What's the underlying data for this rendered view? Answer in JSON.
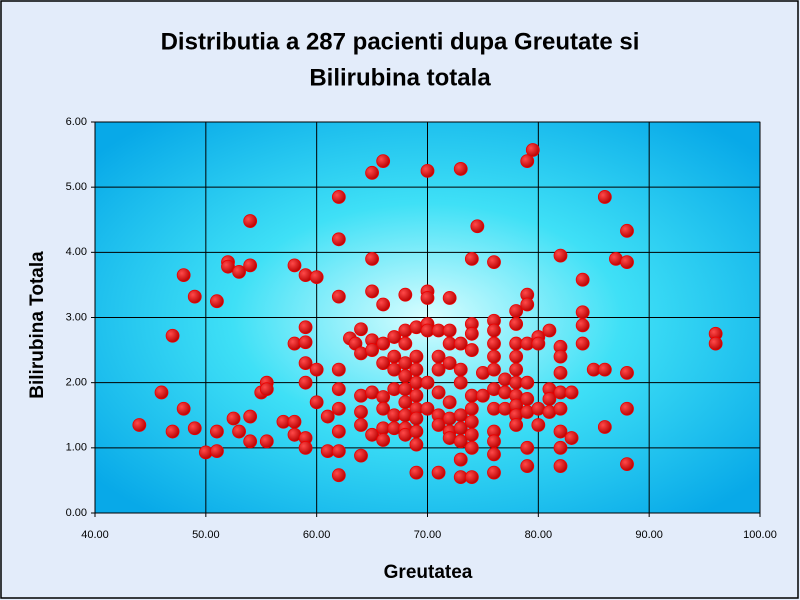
{
  "chart_data": {
    "type": "scatter",
    "title": [
      "Distributia a 287 pacienti dupa Greutate si",
      "Bilirubina totala"
    ],
    "x_label": "Greutatea",
    "y_label": "Bilirubina Totala",
    "color": "#ee0000",
    "grid": true,
    "xlim": [
      40,
      100
    ],
    "ylim": [
      0,
      6
    ],
    "xticks": [
      {
        "value": 40,
        "label": "40.00"
      },
      {
        "value": 50,
        "label": "50.00"
      },
      {
        "value": 60,
        "label": "60.00"
      },
      {
        "value": 70,
        "label": "70.00"
      },
      {
        "value": 80,
        "label": "80.00"
      },
      {
        "value": 90,
        "label": "90.00"
      },
      {
        "value": 100,
        "label": "100.00"
      }
    ],
    "yticks": [
      {
        "value": 0,
        "label": "0.00"
      },
      {
        "value": 1,
        "label": "1.00"
      },
      {
        "value": 2,
        "label": "2.00"
      },
      {
        "value": 3,
        "label": "3.00"
      },
      {
        "value": 4,
        "label": "4.00"
      },
      {
        "value": 5,
        "label": "5.00"
      },
      {
        "value": 6,
        "label": "6.00"
      }
    ],
    "x": [
      44,
      46,
      47,
      47,
      48,
      48,
      49,
      49,
      50,
      51,
      51,
      51,
      52,
      52,
      52.5,
      53,
      53,
      54,
      54,
      54,
      54,
      55,
      55.5,
      55.5,
      55.5,
      57,
      58,
      58,
      58,
      58,
      59,
      59,
      59,
      59,
      59,
      59,
      59,
      60,
      60,
      60,
      61,
      61,
      62,
      62,
      62,
      62,
      62,
      62,
      62,
      62,
      62,
      63,
      63.5,
      64,
      64,
      64,
      64,
      64,
      64,
      65,
      65,
      65,
      65,
      65,
      65,
      65,
      66,
      66,
      66,
      66,
      66,
      66,
      66,
      66,
      67,
      67,
      67,
      67,
      67,
      67,
      68,
      68,
      68,
      68,
      68,
      68,
      68,
      68,
      68,
      68,
      69,
      69,
      69,
      69,
      69,
      69,
      69,
      69,
      69,
      69,
      70,
      70,
      70,
      70,
      70,
      70,
      70,
      71,
      71,
      71,
      71,
      71,
      71,
      71,
      72,
      72,
      72,
      72,
      72,
      72,
      72,
      72,
      73,
      73,
      73,
      73,
      73,
      73,
      73,
      73,
      73,
      74,
      74,
      74,
      74,
      74,
      74,
      74,
      74,
      74,
      74,
      74.5,
      75,
      75,
      76,
      76,
      76,
      76,
      76,
      76,
      76,
      76,
      76,
      76,
      76,
      76,
      77,
      77,
      77,
      78,
      78,
      78,
      78,
      78,
      78,
      78,
      78,
      78,
      78,
      79,
      79,
      79,
      79,
      79,
      79,
      79,
      79,
      79,
      79.5,
      80,
      80,
      80,
      80,
      81,
      81,
      81,
      81,
      82,
      82,
      82,
      82,
      82,
      82,
      82,
      82,
      82,
      83,
      83,
      84,
      84,
      84,
      84,
      85,
      86,
      86,
      86,
      87,
      88,
      88,
      88,
      88,
      88,
      96,
      96
    ],
    "values": [
      1.35,
      1.85,
      2.72,
      1.25,
      3.65,
      1.6,
      3.32,
      1.3,
      0.93,
      3.25,
      1.25,
      0.95,
      3.85,
      3.78,
      1.45,
      3.7,
      1.25,
      4.48,
      3.8,
      1.48,
      1.1,
      1.85,
      2.0,
      1.9,
      1.1,
      1.4,
      3.8,
      2.6,
      1.4,
      1.2,
      3.65,
      2.85,
      2.62,
      2.3,
      2.0,
      1.15,
      1.0,
      3.62,
      2.2,
      1.7,
      1.48,
      0.95,
      4.85,
      4.2,
      3.32,
      2.2,
      1.9,
      1.6,
      1.25,
      0.95,
      0.58,
      2.68,
      2.6,
      2.82,
      2.45,
      1.8,
      1.55,
      1.35,
      0.88,
      5.22,
      3.9,
      3.4,
      2.65,
      2.5,
      1.85,
      1.2,
      5.4,
      3.2,
      2.6,
      2.3,
      1.78,
      1.6,
      1.3,
      1.12,
      2.7,
      2.4,
      2.2,
      1.9,
      1.5,
      1.3,
      3.35,
      2.8,
      2.6,
      2.3,
      2.1,
      1.9,
      1.7,
      1.5,
      1.3,
      1.2,
      2.85,
      2.4,
      2.2,
      2.0,
      1.8,
      1.6,
      1.45,
      1.25,
      1.05,
      0.62,
      5.25,
      3.4,
      3.3,
      2.9,
      2.8,
      2.0,
      1.6,
      2.8,
      2.4,
      2.2,
      1.85,
      1.5,
      1.35,
      0.62,
      3.3,
      2.8,
      2.6,
      2.3,
      1.7,
      1.45,
      1.25,
      1.15,
      5.28,
      2.6,
      2.2,
      2.0,
      1.5,
      1.3,
      1.1,
      0.82,
      0.55,
      3.9,
      2.9,
      2.75,
      2.5,
      1.8,
      1.6,
      1.4,
      1.2,
      1.0,
      0.55,
      4.4,
      2.15,
      1.8,
      3.85,
      2.95,
      2.8,
      2.6,
      2.4,
      2.2,
      1.9,
      1.6,
      1.25,
      1.1,
      0.9,
      0.62,
      2.05,
      1.85,
      1.6,
      3.1,
      2.9,
      2.6,
      2.4,
      2.2,
      2.0,
      1.8,
      1.65,
      1.5,
      1.35,
      5.4,
      3.35,
      3.2,
      2.6,
      2.0,
      1.75,
      1.55,
      1.0,
      0.72,
      5.57,
      2.7,
      2.6,
      1.6,
      1.35,
      2.8,
      1.9,
      1.75,
      1.55,
      3.95,
      2.55,
      2.4,
      2.15,
      1.85,
      1.6,
      1.25,
      1.0,
      0.72,
      1.85,
      1.15,
      3.58,
      3.08,
      2.88,
      2.6,
      2.2,
      4.85,
      2.2,
      1.32,
      3.9,
      4.33,
      3.85,
      2.15,
      1.6,
      0.75,
      2.75,
      2.6
    ]
  }
}
